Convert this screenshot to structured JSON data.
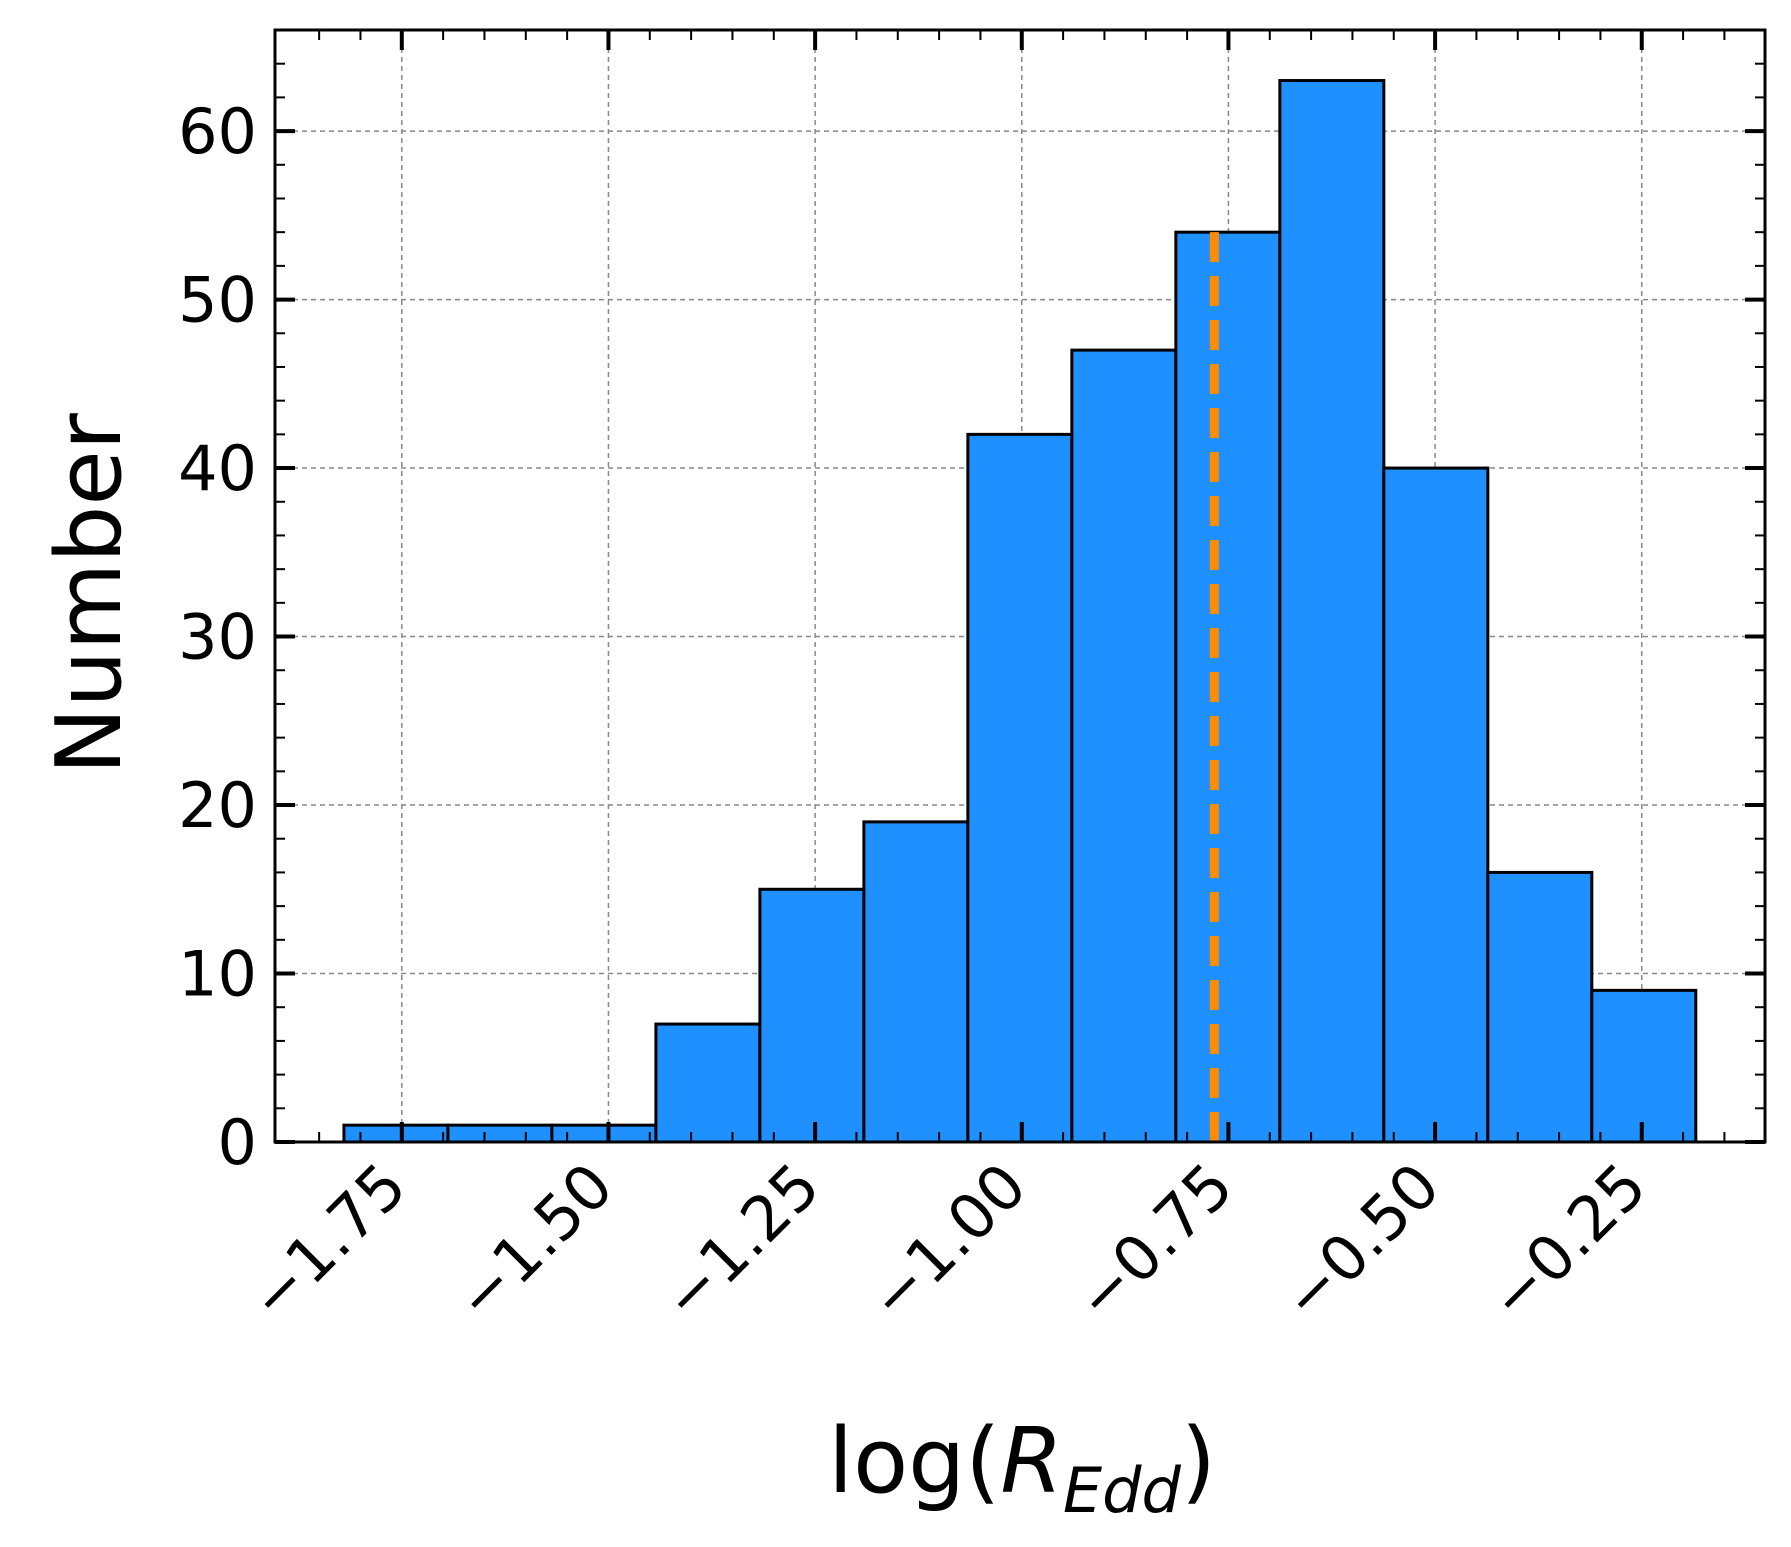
{
  "chart_data": {
    "type": "bar",
    "subtype": "histogram",
    "bins": [
      {
        "x0": -1.82,
        "x1": -1.6942,
        "count": 1
      },
      {
        "x0": -1.6942,
        "x1": -1.5684,
        "count": 1
      },
      {
        "x0": -1.5684,
        "x1": -1.4426,
        "count": 1
      },
      {
        "x0": -1.4426,
        "x1": -1.3168,
        "count": 7
      },
      {
        "x0": -1.3168,
        "x1": -1.191,
        "count": 15
      },
      {
        "x0": -1.191,
        "x1": -1.0652,
        "count": 19
      },
      {
        "x0": -1.0652,
        "x1": -0.9394,
        "count": 42
      },
      {
        "x0": -0.9394,
        "x1": -0.8136,
        "count": 47
      },
      {
        "x0": -0.8136,
        "x1": -0.6878,
        "count": 54
      },
      {
        "x0": -0.6878,
        "x1": -0.562,
        "count": 63
      },
      {
        "x0": -0.562,
        "x1": -0.4362,
        "count": 40
      },
      {
        "x0": -0.4362,
        "x1": -0.3104,
        "count": 16
      },
      {
        "x0": -0.3104,
        "x1": -0.1846,
        "count": 9
      }
    ],
    "vline": {
      "x": -0.767,
      "y_top": 54,
      "style": "dashed",
      "color": "#ff8c00"
    },
    "xlabel": "log(",
    "xlabel_var": "R",
    "xlabel_sub": "Edd",
    "xlabel_close": ")",
    "ylabel": "Number",
    "xlim": [
      -1.9034,
      -0.1009
    ],
    "ylim": [
      0,
      66
    ],
    "xticks": [
      -1.75,
      -1.5,
      -1.25,
      -1.0,
      -0.75,
      -0.5,
      -0.25
    ],
    "xtick_labels": [
      "−1.75",
      "−1.50",
      "−1.25",
      "−1.00",
      "−0.75",
      "−0.50",
      "−0.25"
    ],
    "yticks": [
      0,
      10,
      20,
      30,
      40,
      50,
      60
    ],
    "ytick_labels": [
      "0",
      "10",
      "20",
      "30",
      "40",
      "50",
      "60"
    ],
    "bar_color": "#1e90ff",
    "edge_color": "#000000",
    "grid": true
  }
}
